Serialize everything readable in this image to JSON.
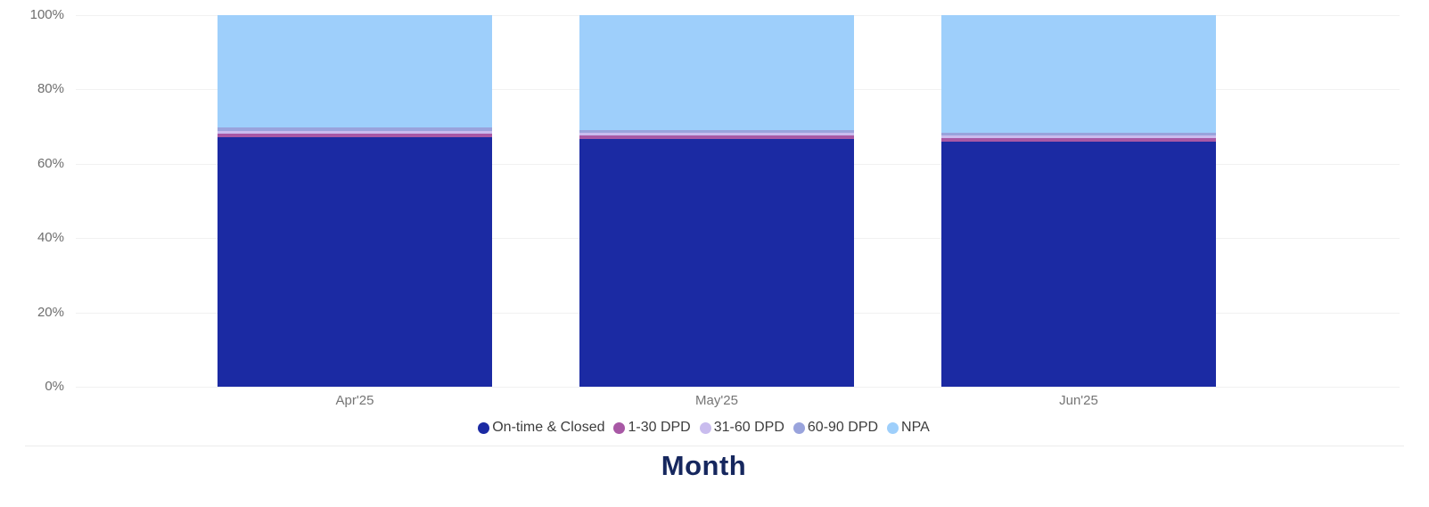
{
  "chart_data": {
    "type": "bar",
    "stacked": true,
    "percent_stacked": true,
    "title": "",
    "xlabel": "Month",
    "ylabel": "",
    "categories": [
      "Apr'25",
      "May'25",
      "Jun'25"
    ],
    "series": [
      {
        "name": "On-time & Closed",
        "color": "#1b2aa3",
        "values": [
          67.2,
          66.7,
          66.0
        ]
      },
      {
        "name": "1-30 DPD",
        "color": "#a858a5",
        "values": [
          0.9,
          0.9,
          0.9
        ]
      },
      {
        "name": "31-60 DPD",
        "color": "#c9bcee",
        "values": [
          0.8,
          0.7,
          0.7
        ]
      },
      {
        "name": "60-90 DPD",
        "color": "#99a3dc",
        "values": [
          1.0,
          0.7,
          0.7
        ]
      },
      {
        "name": "NPA",
        "color": "#9ecffb",
        "values": [
          30.1,
          31.0,
          31.7
        ]
      }
    ],
    "y_ticks": [
      "0%",
      "20%",
      "40%",
      "60%",
      "80%",
      "100%"
    ],
    "ylim": [
      0,
      100
    ],
    "grid": "horizontal",
    "legend_position": "bottom"
  },
  "colors": {
    "grid_line": "#f1f1f1",
    "axis_tick_text": "#6e6e6e",
    "category_text": "#757575",
    "legend_text": "#3d3d3d",
    "axis_title_text": "#16275e",
    "background": "#ffffff"
  }
}
